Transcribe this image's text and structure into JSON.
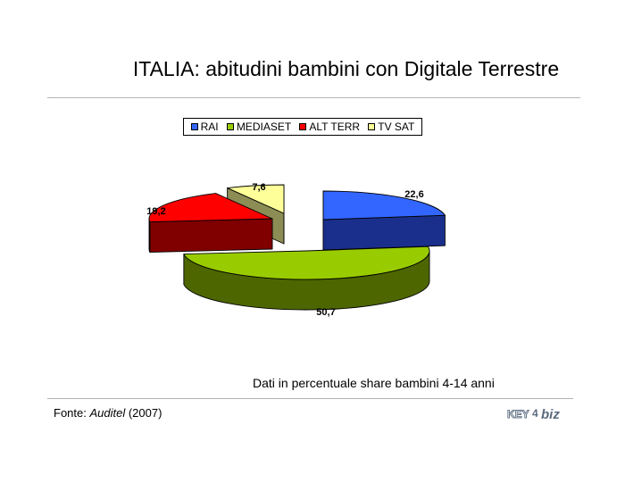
{
  "header": {
    "title": "ITALIA: abitudini bambini con Digitale Terrestre"
  },
  "chart_data": {
    "type": "pie",
    "title": "",
    "style": "3d-exploded",
    "legend": {
      "position": "top"
    },
    "categories": [
      "RAI",
      "MEDIASET",
      "ALT TERR",
      "TV SAT"
    ],
    "values": [
      22.6,
      50.7,
      19.2,
      7.6
    ],
    "value_labels": [
      "22,6",
      "50,7",
      "19,2",
      "7,6"
    ],
    "colors": {
      "RAI": {
        "top": "#3366ff",
        "side": "#1a2f8c"
      },
      "MEDIASET": {
        "top": "#99cc00",
        "side": "#4d6600"
      },
      "ALT TERR": {
        "top": "#ff0000",
        "side": "#800000"
      },
      "TV SAT": {
        "top": "#ffff99",
        "side": "#8c8c55"
      }
    }
  },
  "footer": {
    "note": "Dati in percentuale share bambini 4-14 anni",
    "source_prefix": "Fonte: ",
    "source_name": "Auditel",
    "source_suffix": " (2007)",
    "logo_text_left": "KEY",
    "logo_text_mid": "4",
    "logo_text_right": "biz"
  }
}
